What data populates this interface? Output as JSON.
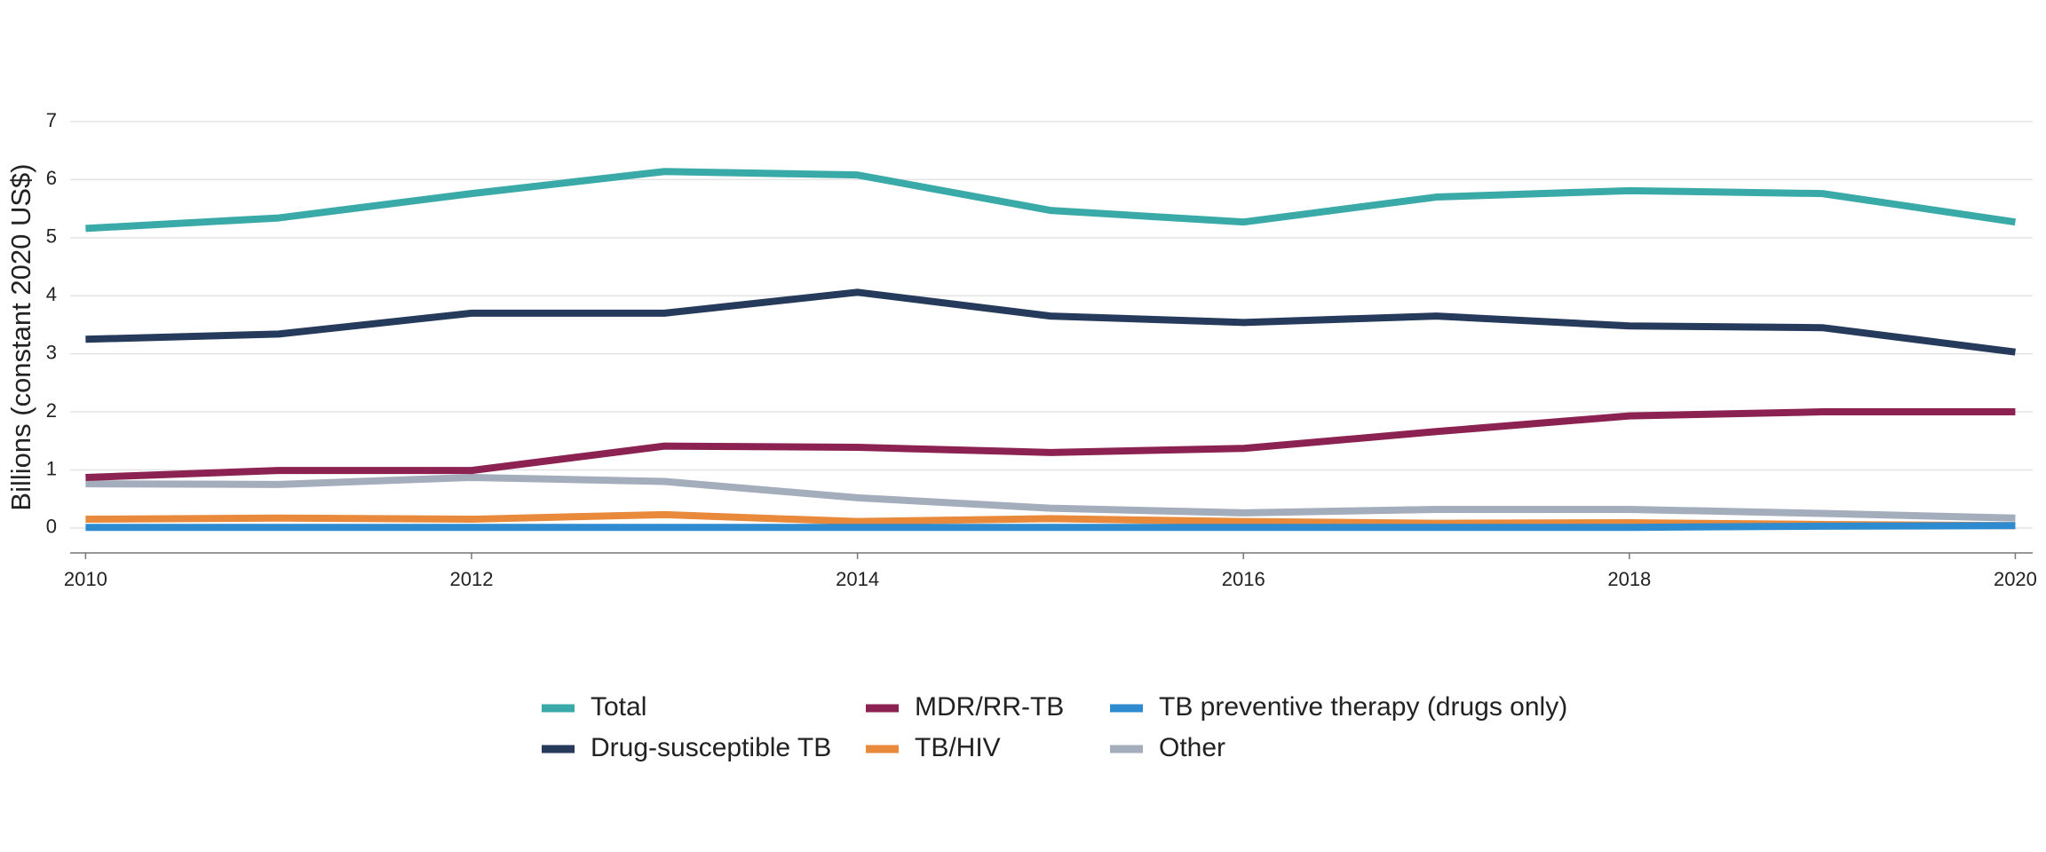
{
  "chart_data": {
    "type": "line",
    "y_label": "Billions (constant 2020 US$)",
    "x": [
      2010,
      2011,
      2012,
      2013,
      2014,
      2015,
      2016,
      2017,
      2018,
      2019,
      2020
    ],
    "xlim": [
      2009.92,
      2020.09
    ],
    "xticks": [
      2010,
      2012,
      2014,
      2016,
      2018,
      2020
    ],
    "ylim": [
      -0.43,
      7
    ],
    "yticks": [
      0,
      1,
      2,
      3,
      4,
      5,
      6,
      7
    ],
    "grid": true,
    "series": [
      {
        "name": "Total",
        "color": "#3aaaa9",
        "values": [
          5.16,
          5.34,
          5.76,
          6.14,
          6.08,
          5.47,
          5.27,
          5.7,
          5.81,
          5.76,
          5.27
        ]
      },
      {
        "name": "Drug-susceptible TB",
        "color": "#263a5c",
        "values": [
          3.25,
          3.34,
          3.7,
          3.7,
          4.06,
          3.65,
          3.54,
          3.65,
          3.48,
          3.45,
          3.03
        ]
      },
      {
        "name": "MDR/RR-TB",
        "color": "#8b2252",
        "values": [
          0.87,
          0.99,
          0.99,
          1.41,
          1.39,
          1.3,
          1.37,
          1.66,
          1.93,
          2.0,
          2.0
        ]
      },
      {
        "name": "TB/HIV",
        "color": "#e8893c",
        "values": [
          0.15,
          0.17,
          0.15,
          0.23,
          0.11,
          0.16,
          0.11,
          0.08,
          0.09,
          0.06,
          0.04
        ]
      },
      {
        "name": "TB preventive therapy (drugs only)",
        "color": "#2e8bd0",
        "values": [
          0.01,
          0.01,
          0.01,
          0.01,
          0.01,
          0.01,
          0.01,
          0.01,
          0.01,
          0.03,
          0.04
        ]
      },
      {
        "name": "Other",
        "color": "#a3adbb",
        "values": [
          0.76,
          0.75,
          0.87,
          0.8,
          0.52,
          0.34,
          0.26,
          0.32,
          0.32,
          0.25,
          0.17
        ]
      }
    ]
  }
}
